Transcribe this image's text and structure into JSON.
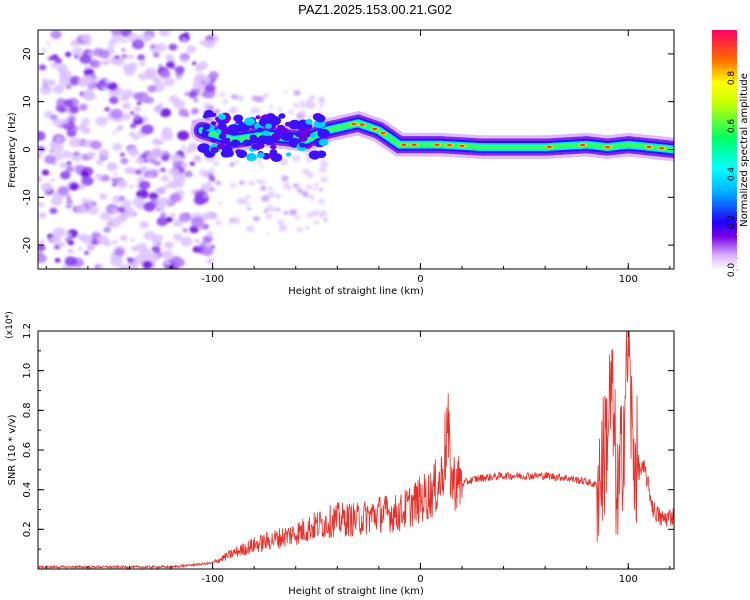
{
  "title": "PAZ1.2025.153.00.21.G02",
  "chart_data": [
    {
      "type": "heatmap",
      "title": "PAZ1.2025.153.00.21.G02",
      "xlabel": "Height of straight line (km)",
      "ylabel": "Frequency (Hz)",
      "xlim": [
        -184,
        122
      ],
      "ylim": [
        -25,
        25
      ],
      "x_ticks": [
        -100,
        0,
        100
      ],
      "x_tick_labels": [
        "-100",
        "0",
        "100"
      ],
      "y_ticks": [
        -20,
        -10,
        0,
        10,
        20
      ],
      "y_tick_labels": [
        "-20",
        "-10",
        "0",
        "10",
        "20"
      ],
      "colorbar": {
        "label": "Normalized spectral amplitude",
        "range": [
          0,
          1
        ],
        "ticks": [
          0.0,
          0.2,
          0.4,
          0.6,
          0.8
        ],
        "tick_labels": [
          "0.0",
          "0.2",
          "0.4",
          "0.6",
          "0.8"
        ],
        "colormap": "rainbow",
        "colors": [
          "#ffffff",
          "#d9b3ff",
          "#7a00e6",
          "#2200ff",
          "#00ffff",
          "#00ff66",
          "#ffff00",
          "#ff3300",
          "#ff0066"
        ]
      },
      "features": {
        "noise_region_x": [
          -184,
          -105
        ],
        "scattered_region_x": [
          -105,
          -45
        ],
        "signal_band": [
          {
            "x": -105,
            "y": 4
          },
          {
            "x": -90,
            "y": 2
          },
          {
            "x": -75,
            "y": 3
          },
          {
            "x": -55,
            "y": 2
          },
          {
            "x": -45,
            "y": 4
          },
          {
            "x": -30,
            "y": 5.5
          },
          {
            "x": -20,
            "y": 4
          },
          {
            "x": -10,
            "y": 1
          },
          {
            "x": 0,
            "y": 1
          },
          {
            "x": 10,
            "y": 1
          },
          {
            "x": 30,
            "y": 0.5
          },
          {
            "x": 60,
            "y": 0.5
          },
          {
            "x": 80,
            "y": 1
          },
          {
            "x": 90,
            "y": 0.5
          },
          {
            "x": 100,
            "y": 1
          },
          {
            "x": 122,
            "y": 0
          }
        ]
      }
    },
    {
      "type": "line",
      "xlabel": "Height of straight line (km)",
      "ylabel": "SNR (10 * v/v)",
      "y_multiplier": "(x10⁴)",
      "xlim": [
        -184,
        122
      ],
      "ylim": [
        0,
        1.2
      ],
      "x_ticks": [
        -100,
        0,
        100
      ],
      "x_tick_labels": [
        "-100",
        "0",
        "100"
      ],
      "y_ticks": [
        0.2,
        0.4,
        0.6,
        0.8,
        1.0,
        1.2
      ],
      "y_tick_labels": [
        "0.2",
        "0.4",
        "0.6",
        "0.8",
        "1.0",
        "1.2"
      ],
      "color": "#e8302a",
      "series": [
        {
          "x": [
            -184,
            -150,
            -120,
            -100,
            -90,
            -80,
            -70,
            -60,
            -50,
            -40,
            -30,
            -20,
            -10,
            -5,
            0,
            5,
            10,
            13,
            15,
            20,
            25,
            30,
            40,
            50,
            60,
            70,
            80,
            85,
            88,
            92,
            95,
            98,
            100,
            102,
            105,
            108,
            112,
            116,
            122
          ],
          "y": [
            0.01,
            0.01,
            0.01,
            0.03,
            0.08,
            0.12,
            0.15,
            0.18,
            0.22,
            0.25,
            0.25,
            0.28,
            0.28,
            0.32,
            0.35,
            0.38,
            0.45,
            0.7,
            0.45,
            0.43,
            0.45,
            0.46,
            0.47,
            0.47,
            0.47,
            0.46,
            0.44,
            0.42,
            0.55,
            0.9,
            0.3,
            0.75,
            1.2,
            0.6,
            0.5,
            0.5,
            0.3,
            0.25,
            0.27
          ]
        }
      ]
    }
  ]
}
